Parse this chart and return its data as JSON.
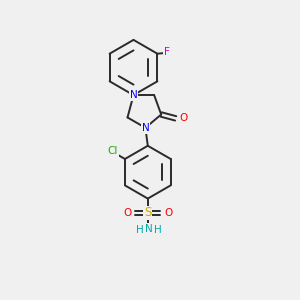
{
  "background_color": "#f0f0f0",
  "bond_color": "#2a2a2a",
  "N_color": "#0000ff",
  "O_color": "#ff0000",
  "F_color": "#cc00cc",
  "Cl_color": "#22aa00",
  "S_color": "#ccaa00",
  "NH_color": "#00aaaa",
  "lw": 1.4,
  "figsize": [
    3.0,
    3.0
  ],
  "dpi": 100,
  "xlim": [
    0,
    10
  ],
  "ylim": [
    0,
    10
  ]
}
